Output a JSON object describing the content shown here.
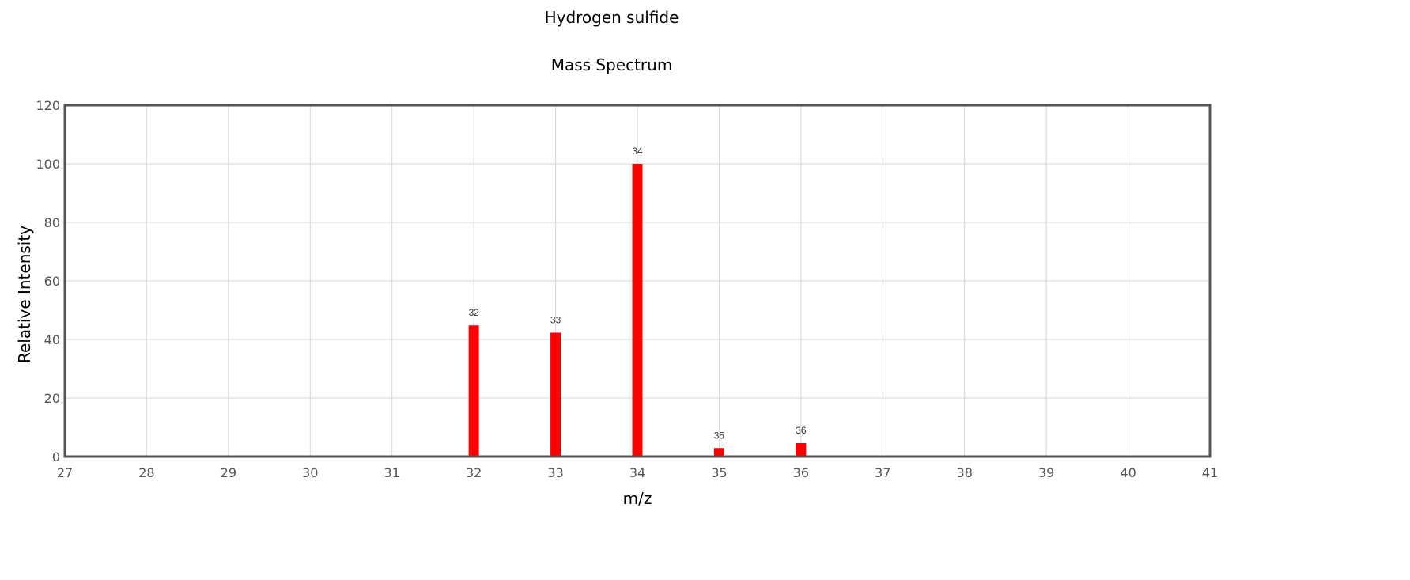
{
  "chart_data": {
    "type": "bar",
    "title": "Hydrogen sulfide",
    "subtitle": "Mass Spectrum",
    "xlabel": "m/z",
    "ylabel": "Relative Intensity",
    "xlim": [
      27,
      41
    ],
    "ylim": [
      0,
      120
    ],
    "x_ticks": [
      27,
      28,
      29,
      30,
      31,
      32,
      33,
      34,
      35,
      36,
      37,
      38,
      39,
      40,
      41
    ],
    "y_ticks": [
      0,
      20,
      40,
      60,
      80,
      100,
      120
    ],
    "grid": true,
    "legend": "none",
    "bar_color": "#ff0000",
    "points": [
      {
        "x": 32,
        "y": 44.8,
        "label": "32"
      },
      {
        "x": 33,
        "y": 42.3,
        "label": "33"
      },
      {
        "x": 34,
        "y": 100,
        "label": "34"
      },
      {
        "x": 35,
        "y": 2.9,
        "label": "35"
      },
      {
        "x": 36,
        "y": 4.6,
        "label": "36"
      }
    ]
  }
}
